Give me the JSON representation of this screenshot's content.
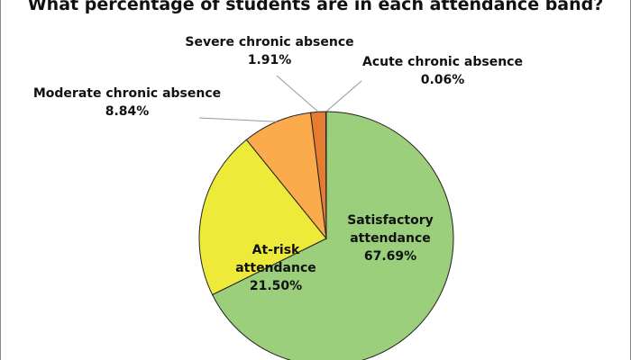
{
  "chart_data": {
    "type": "pie",
    "title": "What percentage of students are in each attendance band?",
    "categories": [
      "Satisfactory attendance",
      "At-risk attendance",
      "Moderate chronic absence",
      "Severe chronic absence",
      "Acute chronic absence"
    ],
    "values": [
      67.69,
      21.5,
      8.84,
      1.91,
      0.06
    ],
    "value_labels": [
      "67.69%",
      "21.50%",
      "8.84%",
      "1.91%",
      "0.06%"
    ],
    "colors": [
      "#9ccf7c",
      "#eeea3a",
      "#fbaa4c",
      "#e57c2f",
      "#d9272b"
    ]
  }
}
